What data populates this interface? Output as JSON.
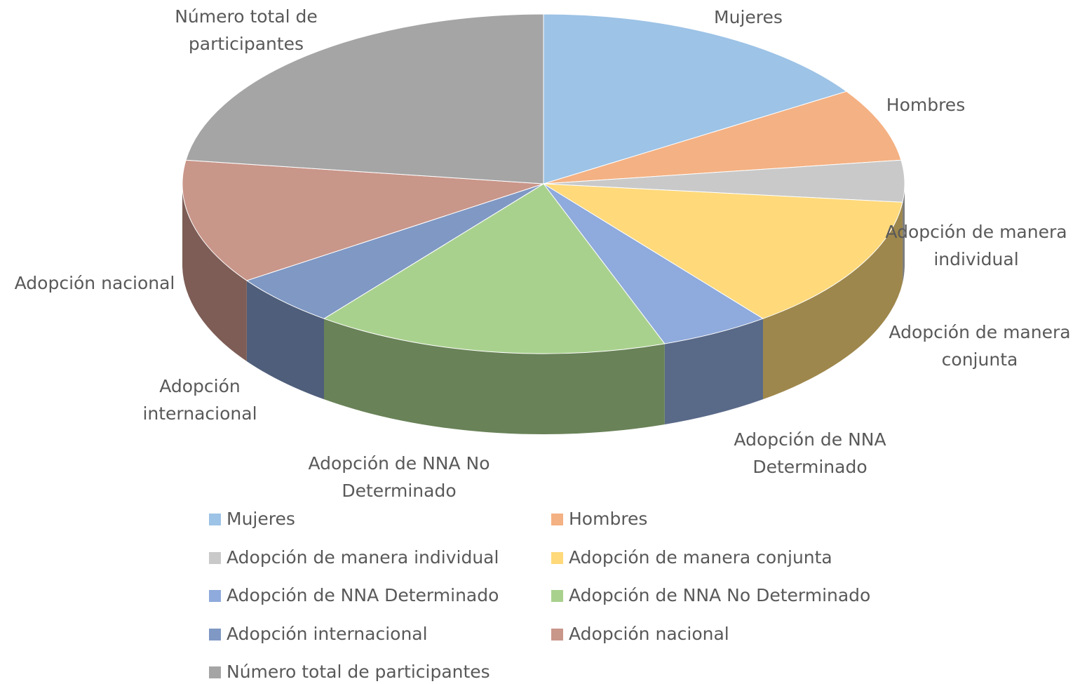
{
  "chart_data": {
    "type": "pie",
    "categories": [
      "Mujeres",
      "Hombres",
      "Adopción de manera individual",
      "Adopción de manera conjunta",
      "Adopción de NNA Determinado",
      "Adopción de NNA No Determinado",
      "Adopción internacional",
      "Adopción nacional",
      "Número total de participantes"
    ],
    "values": [
      16,
      7,
      4,
      13,
      5,
      16,
      5,
      12,
      23
    ],
    "colors": [
      "#9dc3e6",
      "#f4b183",
      "#c9c9c9",
      "#ffd97a",
      "#8faadc",
      "#a9d18e",
      "#7f98c4",
      "#c9968a",
      "#a5a5a5"
    ],
    "legend": "bottom"
  }
}
